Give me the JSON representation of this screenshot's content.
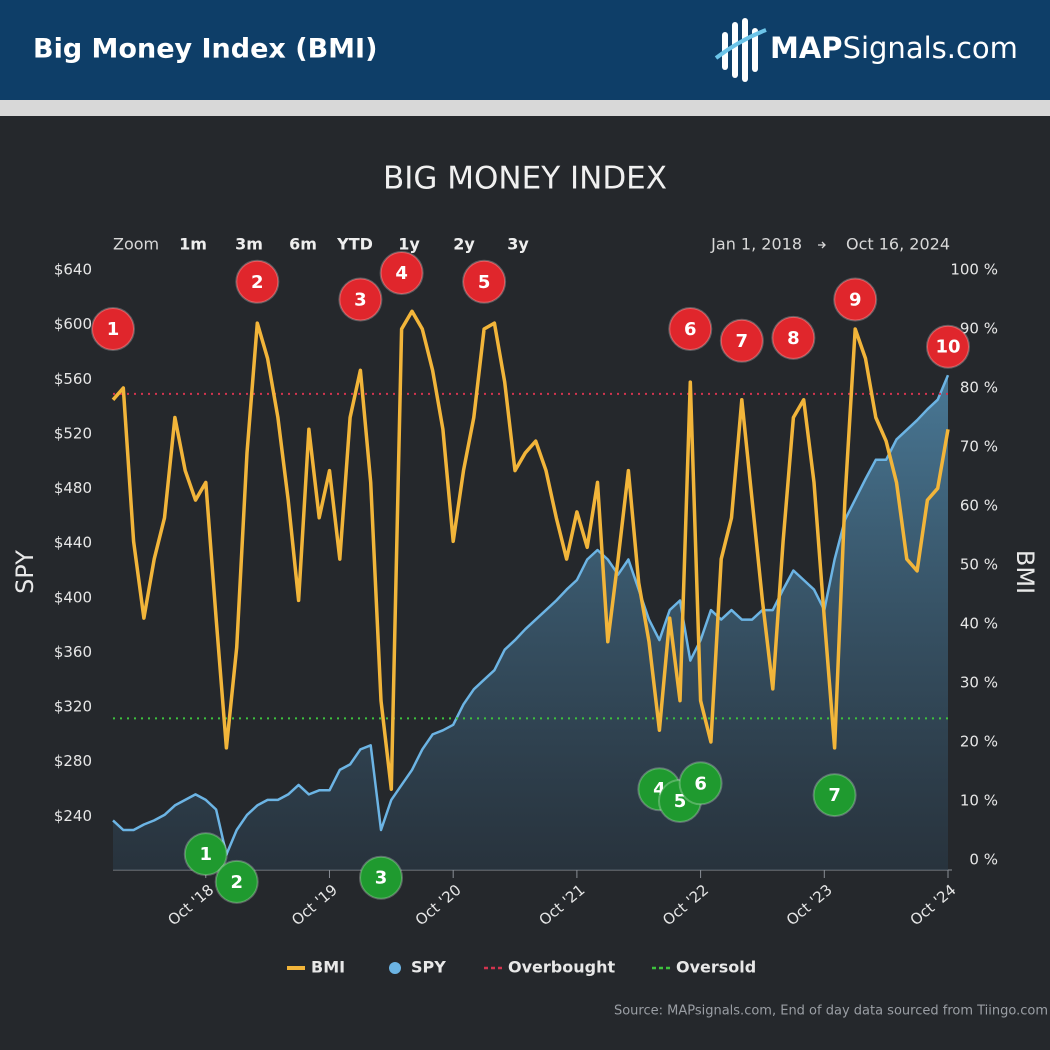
{
  "header": {
    "title": "Big Money Index (BMI)",
    "logo_bold": "MAP",
    "logo_rest": "Signals.com"
  },
  "chart_data": {
    "type": "line",
    "title": "BIG MONEY INDEX",
    "zoom_label": "Zoom",
    "zoom_buttons": [
      "1m",
      "3m",
      "6m",
      "YTD",
      "1y",
      "2y",
      "3y"
    ],
    "date_from": "Jan 1, 2018",
    "date_to": "Oct 16, 2024",
    "y_label": "SPY",
    "y2_label": "BMI",
    "source": "Source: MAPsignals.com, End of day data sourced from Tiingo.com",
    "x": [
      "2018-01",
      "2018-02",
      "2018-03",
      "2018-04",
      "2018-05",
      "2018-06",
      "2018-07",
      "2018-08",
      "2018-09",
      "2018-10",
      "2018-11",
      "2018-12",
      "2019-01",
      "2019-02",
      "2019-03",
      "2019-04",
      "2019-05",
      "2019-06",
      "2019-07",
      "2019-08",
      "2019-09",
      "2019-10",
      "2019-11",
      "2019-12",
      "2020-01",
      "2020-02",
      "2020-03",
      "2020-04",
      "2020-05",
      "2020-06",
      "2020-07",
      "2020-08",
      "2020-09",
      "2020-10",
      "2020-11",
      "2020-12",
      "2021-01",
      "2021-02",
      "2021-03",
      "2021-04",
      "2021-05",
      "2021-06",
      "2021-07",
      "2021-08",
      "2021-09",
      "2021-10",
      "2021-11",
      "2021-12",
      "2022-01",
      "2022-02",
      "2022-03",
      "2022-04",
      "2022-05",
      "2022-06",
      "2022-07",
      "2022-08",
      "2022-09",
      "2022-10",
      "2022-11",
      "2022-12",
      "2023-01",
      "2023-02",
      "2023-03",
      "2023-04",
      "2023-05",
      "2023-06",
      "2023-07",
      "2023-08",
      "2023-09",
      "2023-10",
      "2023-11",
      "2023-12",
      "2024-01",
      "2024-02",
      "2024-03",
      "2024-04",
      "2024-05",
      "2024-06",
      "2024-07",
      "2024-08",
      "2024-09",
      "2024-10"
    ],
    "xlim": [
      "2018-01",
      "2024-10"
    ],
    "xticks": [
      {
        "value": "2018-10",
        "label": "Oct '18"
      },
      {
        "value": "2019-10",
        "label": "Oct '19"
      },
      {
        "value": "2020-10",
        "label": "Oct '20"
      },
      {
        "value": "2021-10",
        "label": "Oct '21"
      },
      {
        "value": "2022-10",
        "label": "Oct '22"
      },
      {
        "value": "2023-10",
        "label": "Oct '23"
      },
      {
        "value": "2024-10",
        "label": "Oct '24"
      }
    ],
    "ylim": [
      208,
      640
    ],
    "yticks": [
      {
        "value": 240,
        "label": "$240"
      },
      {
        "value": 280,
        "label": "$280"
      },
      {
        "value": 320,
        "label": "$320"
      },
      {
        "value": 360,
        "label": "$360"
      },
      {
        "value": 400,
        "label": "$400"
      },
      {
        "value": 440,
        "label": "$440"
      },
      {
        "value": 480,
        "label": "$480"
      },
      {
        "value": 520,
        "label": "$520"
      },
      {
        "value": 560,
        "label": "$560"
      },
      {
        "value": 600,
        "label": "$600"
      },
      {
        "value": 640,
        "label": "$640"
      }
    ],
    "y2lim": [
      0,
      100
    ],
    "y2ticks": [
      {
        "value": 0,
        "label": "0 %"
      },
      {
        "value": 10,
        "label": "10 %"
      },
      {
        "value": 20,
        "label": "20 %"
      },
      {
        "value": 30,
        "label": "30 %"
      },
      {
        "value": 40,
        "label": "40 %"
      },
      {
        "value": 50,
        "label": "50 %"
      },
      {
        "value": 60,
        "label": "60 %"
      },
      {
        "value": 70,
        "label": "70 %"
      },
      {
        "value": 80,
        "label": "80 %"
      },
      {
        "value": 90,
        "label": "90 %"
      },
      {
        "value": 100,
        "label": "100 %"
      }
    ],
    "series": [
      {
        "name": "BMI",
        "color": "#f2b53a",
        "axis": "y2",
        "values": [
          78,
          80,
          54,
          41,
          51,
          58,
          75,
          66,
          61,
          64,
          41,
          19,
          36,
          69,
          91,
          85,
          75,
          61,
          44,
          73,
          58,
          66,
          51,
          75,
          83,
          64,
          27,
          12,
          90,
          93,
          90,
          83,
          73,
          54,
          66,
          75,
          90,
          91,
          81,
          66,
          69,
          71,
          66,
          58,
          51,
          59,
          53,
          64,
          37,
          51,
          66,
          47,
          37,
          22,
          41,
          27,
          81,
          27,
          20,
          51,
          58,
          78,
          61,
          44,
          29,
          54,
          75,
          78,
          64,
          41,
          19,
          61,
          90,
          85,
          75,
          71,
          64,
          51,
          49,
          61,
          63,
          73
        ]
      },
      {
        "name": "SPY",
        "color": "#6cb4e4",
        "values": [
          237,
          230,
          230,
          234,
          237,
          241,
          248,
          252,
          256,
          252,
          245,
          212,
          230,
          241,
          248,
          252,
          252,
          256,
          263,
          256,
          259,
          259,
          274,
          278,
          289,
          292,
          230,
          252,
          263,
          274,
          289,
          300,
          303,
          307,
          322,
          333,
          340,
          347,
          362,
          369,
          377,
          384,
          391,
          398,
          406,
          413,
          428,
          435,
          428,
          417,
          428,
          406,
          384,
          369,
          391,
          398,
          354,
          369,
          391,
          384,
          391,
          384,
          384,
          391,
          391,
          406,
          420,
          413,
          406,
          391,
          428,
          457,
          472,
          487,
          501,
          501,
          516,
          523,
          530,
          538,
          545,
          563
        ]
      }
    ],
    "reference_lines": [
      {
        "name": "Overbought",
        "value": 79,
        "color": "#d2344f"
      },
      {
        "name": "Oversold",
        "value": 24,
        "color": "#3ec23e"
      }
    ],
    "annotations": [
      {
        "text": "1",
        "x": "2018-01",
        "y": 90,
        "color": "#e0262c"
      },
      {
        "text": "2",
        "x": "2019-03",
        "y": 98,
        "color": "#e0262c"
      },
      {
        "text": "3",
        "x": "2020-01",
        "y": 95,
        "color": "#e0262c"
      },
      {
        "text": "4",
        "x": "2020-05",
        "y": 99.5,
        "color": "#e0262c"
      },
      {
        "text": "5",
        "x": "2021-01",
        "y": 98,
        "color": "#e0262c"
      },
      {
        "text": "6",
        "x": "2022-09",
        "y": 90,
        "color": "#e0262c"
      },
      {
        "text": "7",
        "x": "2023-02",
        "y": 88,
        "color": "#e0262c"
      },
      {
        "text": "8",
        "x": "2023-07",
        "y": 88.5,
        "color": "#e0262c"
      },
      {
        "text": "9",
        "x": "2024-01",
        "y": 95,
        "color": "#e0262c"
      },
      {
        "text": "10",
        "x": "2024-10",
        "y": 87,
        "color": "#e0262c"
      },
      {
        "text": "1",
        "x": "2018-10",
        "y": 1,
        "color": "#1f9a2f"
      },
      {
        "text": "2",
        "x": "2019-01",
        "y": -3.7,
        "color": "#1f9a2f"
      },
      {
        "text": "3",
        "x": "2020-03",
        "y": -3,
        "color": "#1f9a2f"
      },
      {
        "text": "4",
        "x": "2022-06",
        "y": 12,
        "color": "#1f9a2f"
      },
      {
        "text": "5",
        "x": "2022-08",
        "y": 10,
        "color": "#1f9a2f"
      },
      {
        "text": "6",
        "x": "2022-10",
        "y": 13,
        "color": "#1f9a2f"
      },
      {
        "text": "7",
        "x": "2023-11",
        "y": 11,
        "color": "#1f9a2f"
      }
    ]
  }
}
